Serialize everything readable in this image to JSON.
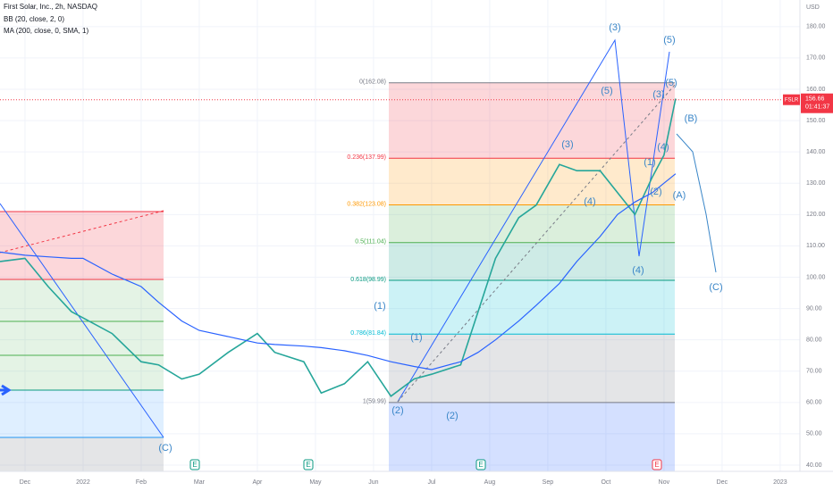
{
  "chart_data": {
    "type": "line",
    "title": "First Solar, Inc., 2h, NASDAQ",
    "indicators": [
      "BB (20, close, 2, 0)",
      "MA (200, close, 0, SMA, 1)"
    ],
    "currency": "USD",
    "x": [
      -0.43,
      0,
      0.4,
      0.8,
      1.0,
      1.5,
      2.0,
      2.3,
      2.7,
      3,
      3.5,
      4,
      4.3,
      4.8,
      5.1,
      5.5,
      5.9,
      6.3,
      6.7,
      7.0,
      7.5,
      7.8,
      8.1,
      8.5,
      8.8,
      9.2,
      9.5,
      9.9,
      10.2,
      10.5,
      10.8,
      11.0,
      11.2
    ],
    "series": [
      {
        "name": "FSLR",
        "color": "#26a69a",
        "values": [
          105,
          106,
          97,
          89,
          87,
          82,
          73,
          72,
          67.5,
          69,
          76,
          82,
          76,
          73,
          63,
          66,
          73,
          62,
          67.5,
          69,
          72,
          89,
          106,
          119,
          123,
          136,
          134,
          134,
          127,
          120,
          132,
          139,
          157
        ]
      },
      {
        "name": "MA (200, close, 0, SMA, 1)",
        "color": "#2962ff",
        "values": [
          108,
          107,
          106.5,
          106,
          106,
          101,
          97,
          92,
          86,
          83,
          81,
          79,
          78.5,
          78,
          77.5,
          76.5,
          75,
          73,
          71.5,
          70.5,
          73,
          76,
          80,
          86,
          91,
          98,
          105,
          113,
          120,
          124,
          127,
          130,
          133
        ]
      }
    ],
    "last_price": {
      "label": "156.66",
      "value": 156.66,
      "countdown": "01:41:37",
      "color": "#f23645"
    },
    "xlim": [
      -0.43,
      13.34
    ],
    "xticks": [
      {
        "value": 0,
        "label": "Dec"
      },
      {
        "value": 1,
        "label": "2022"
      },
      {
        "value": 2,
        "label": "Feb"
      },
      {
        "value": 3,
        "label": "Mar"
      },
      {
        "value": 4,
        "label": "Apr"
      },
      {
        "value": 5,
        "label": "May"
      },
      {
        "value": 6,
        "label": "Jun"
      },
      {
        "value": 7,
        "label": "Jul"
      },
      {
        "value": 8,
        "label": "Aug"
      },
      {
        "value": 9,
        "label": "Sep"
      },
      {
        "value": 10,
        "label": "Oct"
      },
      {
        "value": 11,
        "label": "Nov"
      },
      {
        "value": 12,
        "label": "Dec"
      },
      {
        "value": 13,
        "label": "2023"
      }
    ],
    "ylim": [
      38,
      188.5
    ],
    "yticks": [
      {
        "value": 40,
        "label": "40.00"
      },
      {
        "value": 50,
        "label": "50.00"
      },
      {
        "value": 60,
        "label": "60.00"
      },
      {
        "value": 70,
        "label": "70.00"
      },
      {
        "value": 80,
        "label": "80.00"
      },
      {
        "value": 90,
        "label": "90.00"
      },
      {
        "value": 100,
        "label": "100.00"
      },
      {
        "value": 110,
        "label": "110.00"
      },
      {
        "value": 120,
        "label": "120.00"
      },
      {
        "value": 130,
        "label": "130.00"
      },
      {
        "value": 140,
        "label": "140.00"
      },
      {
        "value": 150,
        "label": "150.00"
      },
      {
        "value": 160,
        "label": "160.00"
      },
      {
        "value": 170,
        "label": "170.00"
      },
      {
        "value": 180,
        "label": "180.00"
      }
    ],
    "grid": true,
    "fib_levels": [
      {
        "label": "0(162.08)",
        "value": 162.08,
        "color": "#787b86",
        "fill": "rgba(242,54,69,0.2)"
      },
      {
        "label": "0.236(137.99)",
        "value": 137.99,
        "color": "#f23645",
        "fill": "rgba(255,152,0,0.2)"
      },
      {
        "label": "0.382(123.08)",
        "value": 123.08,
        "color": "#ff9800",
        "fill": "rgba(76,175,80,0.2)"
      },
      {
        "label": "0.5(111.04)",
        "value": 111.04,
        "color": "#4caf50",
        "fill": "rgba(8,153,129,0.2)"
      },
      {
        "label": "0.618(98.99)",
        "value": 98.99,
        "color": "#089981",
        "fill": "rgba(0,188,212,0.2)"
      },
      {
        "label": "0.786(81.84)",
        "value": 81.84,
        "color": "#00bcd4",
        "fill": "rgba(120,123,134,0.2)"
      },
      {
        "label": "1(59.99)",
        "value": 59.99,
        "color": "#787b86",
        "fill": "rgba(41,98,255,0.2)"
      }
    ],
    "wave_labels": [
      "(3)",
      "(5)",
      "(5)",
      "(5)",
      "(3)",
      "(B)",
      "(3)",
      "(4)",
      "(1)",
      "(4)",
      "(2)",
      "(A)",
      "(4)",
      "(1)",
      "(1)",
      "(2)",
      "(2)",
      "(C)",
      "(C)"
    ],
    "wave_color": "#3a86c8",
    "events": [
      "E",
      "E",
      "E",
      "E"
    ]
  }
}
